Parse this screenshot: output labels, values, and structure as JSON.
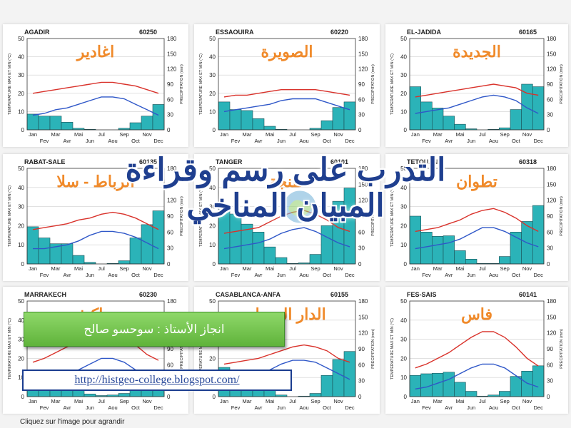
{
  "overlay": {
    "title": "التدرب على رسم وقراءة المبيان المناخي",
    "author": "انجاز الأستاذ : سوحسو صالح",
    "url": "http://histgeo-college.blogspot.com/",
    "caption": "Cliquez sur l'image pour agrandir"
  },
  "axes": {
    "left_ticks": [
      "0",
      "10",
      "20",
      "30",
      "40",
      "50"
    ],
    "right_ticks": [
      "0",
      "30",
      "60",
      "90",
      "120",
      "150",
      "180"
    ],
    "months_top": [
      "Jan",
      "Mar",
      "Mai",
      "Jul",
      "Sep",
      "Nov"
    ],
    "months_bottom": [
      "Fev",
      "Avr",
      "Jun",
      "Aou",
      "Oct",
      "Dec"
    ],
    "left_label": "TEMPERATURE MAX ET MIN (°C)",
    "right_label": "PRECIPITATION (mm)"
  },
  "colors": {
    "bar": "#2bb3b8",
    "bar_stroke": "#1a4f55",
    "max_line": "#d9322b",
    "min_line": "#2f57c8",
    "arabic_name": "#f08a2a",
    "author_bg": "#6cc245",
    "url_border": "#1a3c8f",
    "title": "#1f3f8f"
  },
  "chart_data": [
    {
      "type": "bar+line",
      "name": "AGADIR",
      "code": "60250",
      "arabic": "اغادير",
      "ylim_temp": [
        0,
        50
      ],
      "ylim_precip": [
        0,
        180
      ],
      "precip": [
        31,
        27,
        27,
        15,
        3,
        1,
        0,
        0,
        3,
        14,
        27,
        50
      ],
      "tmax": [
        20,
        21,
        22,
        23,
        24,
        25,
        26,
        26,
        25,
        24,
        22,
        20
      ],
      "tmin": [
        8,
        9,
        11,
        12,
        14,
        16,
        18,
        18,
        17,
        14,
        11,
        8
      ]
    },
    {
      "type": "bar+line",
      "name": "ESSAOUIRA",
      "code": "60220",
      "arabic": "الصويرة",
      "ylim_temp": [
        0,
        50
      ],
      "ylim_precip": [
        0,
        180
      ],
      "precip": [
        55,
        40,
        38,
        22,
        7,
        1,
        0,
        0,
        3,
        18,
        44,
        55
      ],
      "tmax": [
        18,
        19,
        19,
        20,
        21,
        22,
        22,
        22,
        22,
        21,
        20,
        19
      ],
      "tmin": [
        10,
        11,
        12,
        13,
        14,
        16,
        17,
        17,
        17,
        15,
        13,
        11
      ]
    },
    {
      "type": "bar+line",
      "name": "EL-JADIDA",
      "code": "60165",
      "arabic": "الجديدة",
      "ylim_temp": [
        0,
        50
      ],
      "ylim_precip": [
        0,
        180
      ],
      "precip": [
        85,
        55,
        43,
        27,
        11,
        2,
        0,
        1,
        4,
        40,
        90,
        85
      ],
      "tmax": [
        18,
        19,
        20,
        21,
        22,
        23,
        24,
        25,
        24,
        23,
        20,
        19
      ],
      "tmin": [
        9,
        10,
        11,
        12,
        14,
        16,
        18,
        19,
        18,
        16,
        12,
        9
      ]
    },
    {
      "type": "bar+line",
      "name": "RABAT-SALE",
      "code": "60135",
      "arabic": "الرباط - سلا",
      "ylim_temp": [
        0,
        50
      ],
      "ylim_precip": [
        0,
        180
      ],
      "precip": [
        70,
        49,
        38,
        38,
        16,
        3,
        0,
        1,
        6,
        49,
        74,
        100
      ],
      "tmax": [
        18,
        19,
        20,
        21,
        23,
        24,
        26,
        27,
        26,
        24,
        21,
        18
      ],
      "tmin": [
        8,
        8,
        9,
        10,
        12,
        15,
        17,
        17,
        16,
        14,
        11,
        8
      ]
    },
    {
      "type": "bar+line",
      "name": "TANGER",
      "code": "60101",
      "arabic": "طنجة",
      "ylim_temp": [
        0,
        50
      ],
      "ylim_precip": [
        0,
        180
      ],
      "precip": [
        103,
        94,
        75,
        60,
        32,
        12,
        1,
        2,
        18,
        72,
        118,
        143
      ],
      "tmax": [
        16,
        17,
        18,
        19,
        22,
        25,
        27,
        28,
        26,
        23,
        19,
        17
      ],
      "tmin": [
        8,
        9,
        10,
        11,
        13,
        16,
        18,
        19,
        17,
        14,
        11,
        9
      ]
    },
    {
      "type": "bar+line",
      "name": "TETOUAN",
      "code": "60318",
      "arabic": "تطوان",
      "ylim_temp": [
        0,
        50
      ],
      "ylim_precip": [
        0,
        180
      ],
      "precip": [
        90,
        60,
        52,
        53,
        25,
        9,
        1,
        1,
        14,
        60,
        80,
        110
      ],
      "tmax": [
        17,
        18,
        19,
        21,
        23,
        26,
        28,
        29,
        27,
        24,
        20,
        17
      ],
      "tmin": [
        8,
        9,
        10,
        11,
        13,
        16,
        19,
        19,
        17,
        14,
        11,
        9
      ]
    },
    {
      "type": "bar+line",
      "name": "MARRAKECH",
      "code": "60230",
      "arabic": "مراكش",
      "ylim_temp": [
        0,
        50
      ],
      "ylim_precip": [
        0,
        180
      ],
      "precip": [
        32,
        38,
        38,
        31,
        14,
        5,
        2,
        3,
        6,
        24,
        41,
        31
      ],
      "tmax": [
        18,
        20,
        23,
        26,
        29,
        33,
        37,
        37,
        32,
        27,
        22,
        19
      ],
      "tmin": [
        5,
        6,
        9,
        11,
        14,
        17,
        20,
        20,
        18,
        14,
        9,
        6
      ]
    },
    {
      "type": "bar+line",
      "name": "CASABLANCA-ANFA",
      "code": "60155",
      "arabic": "الدار البيضاء",
      "ylim_temp": [
        0,
        50
      ],
      "ylim_precip": [
        0,
        180
      ],
      "precip": [
        55,
        50,
        50,
        37,
        20,
        3,
        0,
        1,
        6,
        40,
        70,
        85
      ],
      "tmax": [
        17,
        18,
        19,
        20,
        22,
        24,
        26,
        27,
        26,
        24,
        20,
        18
      ],
      "tmin": [
        8,
        9,
        10,
        12,
        14,
        17,
        19,
        19,
        18,
        15,
        12,
        9
      ]
    },
    {
      "type": "bar+line",
      "name": "FES-SAIS",
      "code": "60141",
      "arabic": "فاس",
      "ylim_temp": [
        0,
        50
      ],
      "ylim_precip": [
        0,
        180
      ],
      "precip": [
        40,
        43,
        44,
        46,
        27,
        10,
        1,
        3,
        10,
        38,
        48,
        58
      ],
      "tmax": [
        15,
        17,
        20,
        23,
        27,
        31,
        34,
        34,
        31,
        26,
        20,
        16
      ],
      "tmin": [
        4,
        5,
        7,
        9,
        12,
        15,
        17,
        17,
        15,
        11,
        7,
        5
      ]
    }
  ]
}
